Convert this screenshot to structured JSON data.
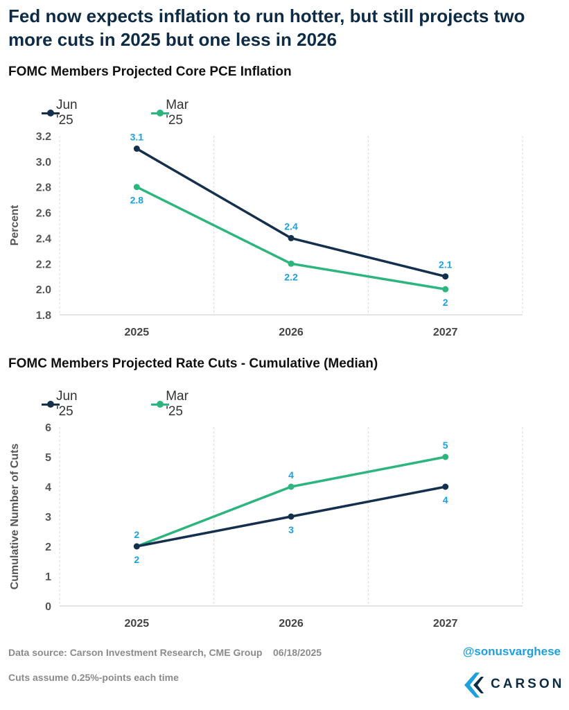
{
  "headline": {
    "line1": "Fed now expects inflation to run hotter, but still projects two",
    "line2": "more cuts in 2025 but one less in 2026"
  },
  "colors": {
    "jun": "#14304d",
    "mar": "#2db57f",
    "label": "#1ca0e0",
    "grid": "#d9d9d9",
    "axis_text": "#555555"
  },
  "chart_data": [
    {
      "type": "line",
      "title": "FOMC Members Projected Core PCE Inflation",
      "ylabel": "Percent",
      "xlabel": "",
      "categories": [
        "2025",
        "2026",
        "2027"
      ],
      "ylim": [
        1.8,
        3.2
      ],
      "yticks": [
        "1.8",
        "2.0",
        "2.2",
        "2.4",
        "2.6",
        "2.8",
        "3.0",
        "3.2"
      ],
      "grid": "vertical-dashed",
      "legend": "top-left",
      "series": [
        {
          "name": "Jun '25",
          "values": [
            3.1,
            2.4,
            2.1
          ],
          "labels": [
            "3.1",
            "2.4",
            "2.1"
          ]
        },
        {
          "name": "Mar '25",
          "values": [
            2.8,
            2.2,
            2.0
          ],
          "labels": [
            "2.8",
            "2.2",
            "2"
          ]
        }
      ]
    },
    {
      "type": "line",
      "title": "FOMC Members Projected Rate Cuts - Cumulative (Median)",
      "ylabel": "Cumulative Number of Cuts",
      "xlabel": "",
      "categories": [
        "2025",
        "2026",
        "2027"
      ],
      "ylim": [
        0,
        6
      ],
      "yticks": [
        "0",
        "1",
        "2",
        "3",
        "4",
        "5",
        "6"
      ],
      "grid": "vertical-dashed",
      "legend": "top-left",
      "series": [
        {
          "name": "Jun '25",
          "values": [
            2,
            3,
            4
          ],
          "labels": [
            "2",
            "3",
            "4"
          ]
        },
        {
          "name": "Mar '25",
          "values": [
            2,
            4,
            5
          ],
          "labels": [
            "2",
            "4",
            "5"
          ]
        }
      ]
    }
  ],
  "footer": {
    "source": "Data source: Carson Investment Research, CME Group    06/18/2025",
    "note": "Cuts assume 0.25%-points each time",
    "handle": "@sonusvarghese",
    "logo_text": "CARSON"
  }
}
